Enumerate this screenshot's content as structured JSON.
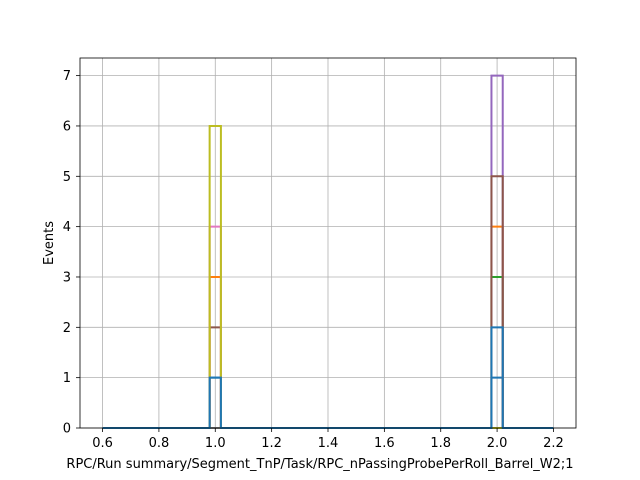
{
  "chart_data": {
    "type": "histogram-step",
    "title": "",
    "xlabel": "RPC/Run summary/Segment_TnP/Task/RPC_nPassingProbePerRoll_Barrel_W2;1",
    "ylabel": "Events",
    "xlim": [
      0.52,
      2.28
    ],
    "ylim": [
      0,
      7.35
    ],
    "xticks": [
      0.6,
      0.8,
      1.0,
      1.2,
      1.4,
      1.6,
      1.8,
      2.0,
      2.2
    ],
    "xtick_labels": [
      "0.6",
      "0.8",
      "1.0",
      "1.2",
      "1.4",
      "1.6",
      "1.8",
      "2.0",
      "2.2"
    ],
    "yticks": [
      0,
      1,
      2,
      3,
      4,
      5,
      6,
      7
    ],
    "ytick_labels": [
      "0",
      "1",
      "2",
      "3",
      "4",
      "5",
      "6",
      "7"
    ],
    "grid": true,
    "bin_range": [
      0.6,
      2.2
    ],
    "bin_width": 0.04,
    "series": [
      {
        "color": "#1f77b4",
        "counts": [
          {
            "x": 1.0,
            "y": 1
          },
          {
            "x": 2.0,
            "y": 1
          }
        ]
      },
      {
        "color": "#ff7f0e",
        "counts": [
          {
            "x": 1.0,
            "y": 3
          },
          {
            "x": 2.0,
            "y": 4
          }
        ]
      },
      {
        "color": "#2ca02c",
        "counts": [
          {
            "x": 1.0,
            "y": 0
          },
          {
            "x": 2.0,
            "y": 3
          }
        ]
      },
      {
        "color": "#d62728",
        "counts": [
          {
            "x": 1.0,
            "y": 0
          },
          {
            "x": 2.0,
            "y": 0
          }
        ]
      },
      {
        "color": "#9467bd",
        "counts": [
          {
            "x": 1.0,
            "y": 0
          },
          {
            "x": 2.0,
            "y": 7
          }
        ]
      },
      {
        "color": "#8c564b",
        "counts": [
          {
            "x": 1.0,
            "y": 2
          },
          {
            "x": 2.0,
            "y": 5
          }
        ]
      },
      {
        "color": "#e377c2",
        "counts": [
          {
            "x": 1.0,
            "y": 4
          },
          {
            "x": 2.0,
            "y": 0
          }
        ]
      },
      {
        "color": "#7f7f7f",
        "counts": [
          {
            "x": 1.0,
            "y": 0
          },
          {
            "x": 2.0,
            "y": 0
          }
        ]
      },
      {
        "color": "#bcbd22",
        "counts": [
          {
            "x": 1.0,
            "y": 6
          },
          {
            "x": 2.0,
            "y": 0
          }
        ]
      },
      {
        "color": "#1f77b4",
        "counts": [
          {
            "x": 1.0,
            "y": 1
          },
          {
            "x": 2.0,
            "y": 2
          }
        ]
      }
    ],
    "colors": {
      "grid": "#b0b0b0",
      "axes": "#000000",
      "background": "#ffffff"
    }
  }
}
